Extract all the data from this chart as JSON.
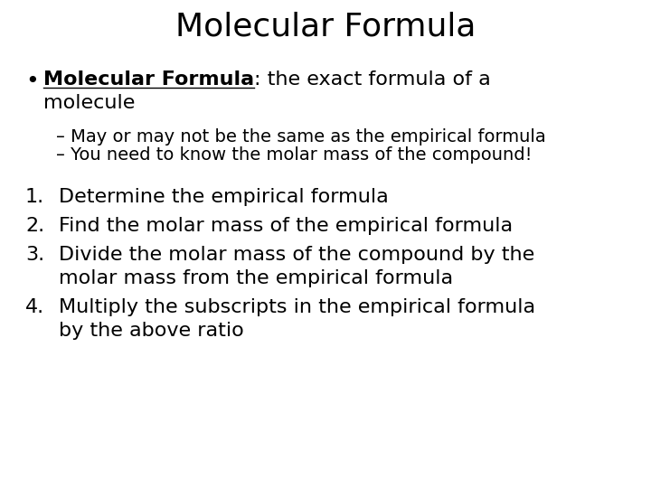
{
  "title": "Molecular Formula",
  "bg_color": "#ffffff",
  "text_color": "#000000",
  "title_fontsize": 26,
  "bullet_fontsize": 16,
  "sub_bullet_fontsize": 14,
  "numbered_fontsize": 16,
  "sub_bullets": [
    "– May or may not be the same as the empirical formula",
    "– You need to know the molar mass of the compound!"
  ],
  "numbered_items": [
    [
      "Determine the empirical formula"
    ],
    [
      "Find the molar mass of the empirical formula"
    ],
    [
      "Divide the molar mass of the compound by the",
      "molar mass from the empirical formula"
    ],
    [
      "Multiply the subscripts in the empirical formula",
      "by the above ratio"
    ]
  ]
}
